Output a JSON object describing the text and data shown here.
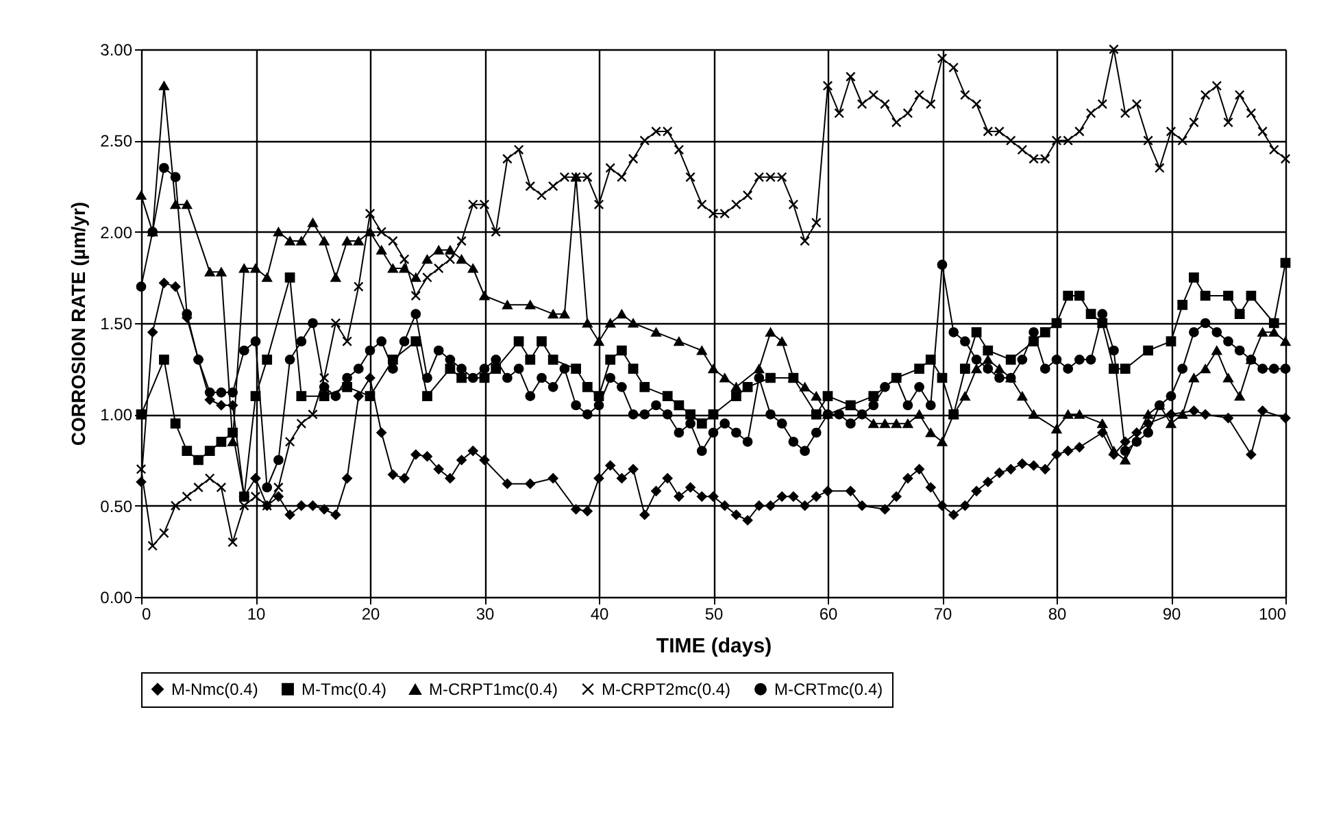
{
  "chart_data": {
    "type": "line",
    "xlabel": "TIME (days)",
    "ylabel": "CORROSION RATE (µm/yr)",
    "xlim": [
      0,
      100
    ],
    "xticks": [
      0,
      10,
      20,
      30,
      40,
      50,
      60,
      70,
      80,
      90,
      100
    ],
    "ylim": [
      0,
      3
    ],
    "yticks": [
      {
        "value": 0,
        "label": "0.00"
      },
      {
        "value": 0.5,
        "label": "0.50"
      },
      {
        "value": 1,
        "label": "1.00"
      },
      {
        "value": 1.5,
        "label": "1.50"
      },
      {
        "value": 2,
        "label": "2.00"
      },
      {
        "value": 2.5,
        "label": "2.50"
      },
      {
        "value": 3,
        "label": "3.00"
      }
    ],
    "grid": true,
    "legend": "bottom",
    "line_style": "solid",
    "series": [
      {
        "name": "M-Nmc(0.4)",
        "color": "#000000",
        "marker": "diamond",
        "x": [
          0,
          1,
          2,
          3,
          4,
          5,
          6,
          7,
          8,
          9,
          10,
          11,
          12,
          13,
          14,
          15,
          16,
          17,
          18,
          19,
          20,
          21,
          22,
          23,
          24,
          25,
          26,
          27,
          28,
          29,
          30,
          32,
          34,
          36,
          38,
          39,
          40,
          41,
          42,
          43,
          44,
          45,
          46,
          47,
          48,
          49,
          50,
          51,
          52,
          53,
          54,
          55,
          56,
          57,
          58,
          59,
          60,
          62,
          63,
          65,
          66,
          67,
          68,
          69,
          70,
          71,
          72,
          73,
          74,
          75,
          76,
          77,
          78,
          79,
          80,
          81,
          82,
          84,
          85,
          86,
          87,
          88,
          90,
          92,
          93,
          95,
          97,
          98,
          100
        ],
        "values": [
          0.63,
          1.45,
          1.72,
          1.7,
          1.53,
          1.3,
          1.08,
          1.05,
          1.05,
          0.55,
          0.65,
          0.5,
          0.55,
          0.45,
          0.5,
          0.5,
          0.48,
          0.45,
          0.65,
          1.1,
          1.2,
          0.9,
          0.67,
          0.65,
          0.78,
          0.77,
          0.7,
          0.65,
          0.75,
          0.8,
          0.75,
          0.62,
          0.62,
          0.65,
          0.48,
          0.47,
          0.65,
          0.72,
          0.65,
          0.7,
          0.45,
          0.58,
          0.65,
          0.55,
          0.6,
          0.55,
          0.55,
          0.5,
          0.45,
          0.42,
          0.5,
          0.5,
          0.55,
          0.55,
          0.5,
          0.55,
          0.58,
          0.58,
          0.5,
          0.48,
          0.55,
          0.65,
          0.7,
          0.6,
          0.5,
          0.45,
          0.5,
          0.58,
          0.63,
          0.68,
          0.7,
          0.73,
          0.72,
          0.7,
          0.78,
          0.8,
          0.82,
          0.9,
          0.78,
          0.85,
          0.9,
          0.95,
          1.0,
          1.02,
          1.0,
          0.98,
          0.78,
          1.02,
          0.98
        ]
      },
      {
        "name": "M-Tmc(0.4)",
        "color": "#000000",
        "marker": "square",
        "x": [
          0,
          2,
          3,
          4,
          5,
          6,
          7,
          8,
          9,
          10,
          11,
          13,
          14,
          16,
          18,
          20,
          22,
          24,
          25,
          27,
          28,
          30,
          31,
          33,
          34,
          35,
          36,
          38,
          39,
          40,
          41,
          42,
          43,
          44,
          46,
          47,
          48,
          49,
          50,
          52,
          53,
          55,
          57,
          59,
          60,
          62,
          64,
          66,
          68,
          69,
          70,
          71,
          72,
          73,
          74,
          76,
          78,
          79,
          80,
          81,
          82,
          83,
          84,
          85,
          86,
          88,
          90,
          91,
          92,
          93,
          95,
          96,
          97,
          99,
          100
        ],
        "values": [
          1.0,
          1.3,
          0.95,
          0.8,
          0.75,
          0.8,
          0.85,
          0.9,
          0.55,
          1.1,
          1.3,
          1.75,
          1.1,
          1.1,
          1.15,
          1.1,
          1.3,
          1.4,
          1.1,
          1.25,
          1.2,
          1.2,
          1.25,
          1.4,
          1.3,
          1.4,
          1.3,
          1.25,
          1.15,
          1.1,
          1.3,
          1.35,
          1.25,
          1.15,
          1.1,
          1.05,
          1.0,
          0.95,
          1.0,
          1.1,
          1.15,
          1.2,
          1.2,
          1.0,
          1.1,
          1.05,
          1.1,
          1.2,
          1.25,
          1.3,
          1.2,
          1.0,
          1.25,
          1.45,
          1.35,
          1.3,
          1.4,
          1.45,
          1.5,
          1.65,
          1.65,
          1.55,
          1.5,
          1.25,
          1.25,
          1.35,
          1.4,
          1.6,
          1.75,
          1.65,
          1.65,
          1.55,
          1.65,
          1.5,
          1.83
        ]
      },
      {
        "name": "M-CRPT1mc(0.4)",
        "color": "#000000",
        "marker": "triangle",
        "x": [
          0,
          1,
          2,
          3,
          4,
          6,
          7,
          8,
          9,
          10,
          11,
          12,
          13,
          14,
          15,
          16,
          17,
          18,
          19,
          20,
          21,
          22,
          23,
          24,
          25,
          26,
          27,
          28,
          29,
          30,
          32,
          34,
          36,
          37,
          38,
          39,
          40,
          41,
          42,
          43,
          45,
          47,
          49,
          50,
          51,
          52,
          54,
          55,
          56,
          57,
          58,
          59,
          60,
          62,
          64,
          65,
          66,
          67,
          68,
          69,
          70,
          71,
          72,
          73,
          74,
          75,
          76,
          77,
          78,
          80,
          81,
          82,
          84,
          85,
          86,
          88,
          89,
          90,
          91,
          92,
          93,
          94,
          95,
          96,
          97,
          98,
          99,
          100
        ],
        "values": [
          2.2,
          2.0,
          2.8,
          2.15,
          2.15,
          1.78,
          1.78,
          0.85,
          1.8,
          1.8,
          1.75,
          2.0,
          1.95,
          1.95,
          2.05,
          1.95,
          1.75,
          1.95,
          1.95,
          2.0,
          1.9,
          1.8,
          1.8,
          1.75,
          1.85,
          1.9,
          1.9,
          1.85,
          1.8,
          1.65,
          1.6,
          1.6,
          1.55,
          1.55,
          2.3,
          1.5,
          1.4,
          1.5,
          1.55,
          1.5,
          1.45,
          1.4,
          1.35,
          1.25,
          1.2,
          1.15,
          1.25,
          1.45,
          1.4,
          1.2,
          1.15,
          1.1,
          1.0,
          1.05,
          0.95,
          0.95,
          0.95,
          0.95,
          1.0,
          0.9,
          0.85,
          1.0,
          1.1,
          1.25,
          1.3,
          1.25,
          1.2,
          1.1,
          1.0,
          0.92,
          1.0,
          1.0,
          0.95,
          0.8,
          0.75,
          1.0,
          1.05,
          0.95,
          1.0,
          1.2,
          1.25,
          1.35,
          1.2,
          1.1,
          1.3,
          1.45,
          1.45,
          1.4
        ]
      },
      {
        "name": "M-CRPT2mc(0.4)",
        "color": "#000000",
        "marker": "cross",
        "x": [
          0,
          1,
          2,
          3,
          4,
          5,
          6,
          7,
          8,
          9,
          10,
          11,
          12,
          13,
          14,
          15,
          16,
          17,
          18,
          19,
          20,
          21,
          22,
          23,
          24,
          25,
          26,
          27,
          28,
          29,
          30,
          31,
          32,
          33,
          34,
          35,
          36,
          37,
          38,
          39,
          40,
          41,
          42,
          43,
          44,
          45,
          46,
          47,
          48,
          49,
          50,
          51,
          52,
          53,
          54,
          55,
          56,
          57,
          58,
          59,
          60,
          61,
          62,
          63,
          64,
          65,
          66,
          67,
          68,
          69,
          70,
          71,
          72,
          73,
          74,
          75,
          76,
          77,
          78,
          79,
          80,
          81,
          82,
          83,
          84,
          85,
          86,
          87,
          88,
          89,
          90,
          91,
          92,
          93,
          94,
          95,
          96,
          97,
          98,
          99,
          100
        ],
        "values": [
          0.7,
          0.28,
          0.35,
          0.5,
          0.55,
          0.6,
          0.65,
          0.6,
          0.3,
          0.5,
          0.55,
          0.5,
          0.6,
          0.85,
          0.95,
          1.0,
          1.2,
          1.5,
          1.4,
          1.7,
          2.1,
          2.0,
          1.95,
          1.85,
          1.65,
          1.75,
          1.8,
          1.85,
          1.95,
          2.15,
          2.15,
          2.0,
          2.4,
          2.45,
          2.25,
          2.2,
          2.25,
          2.3,
          2.3,
          2.3,
          2.15,
          2.35,
          2.3,
          2.4,
          2.5,
          2.55,
          2.55,
          2.45,
          2.3,
          2.15,
          2.1,
          2.1,
          2.15,
          2.2,
          2.3,
          2.3,
          2.3,
          2.15,
          1.95,
          2.05,
          2.8,
          2.65,
          2.85,
          2.7,
          2.75,
          2.7,
          2.6,
          2.65,
          2.75,
          2.7,
          2.95,
          2.9,
          2.75,
          2.7,
          2.55,
          2.55,
          2.5,
          2.45,
          2.4,
          2.4,
          2.5,
          2.5,
          2.55,
          2.65,
          2.7,
          3.0,
          2.65,
          2.7,
          2.5,
          2.35,
          2.55,
          2.5,
          2.6,
          2.75,
          2.8,
          2.6,
          2.75,
          2.65,
          2.55,
          2.45,
          2.4
        ]
      },
      {
        "name": "M-CRTmc(0.4)",
        "color": "#000000",
        "marker": "circle",
        "x": [
          0,
          1,
          2,
          3,
          4,
          5,
          6,
          7,
          8,
          9,
          10,
          11,
          12,
          13,
          14,
          15,
          16,
          17,
          18,
          19,
          20,
          21,
          22,
          23,
          24,
          25,
          26,
          27,
          28,
          29,
          30,
          31,
          32,
          33,
          34,
          35,
          36,
          37,
          38,
          39,
          40,
          41,
          42,
          43,
          44,
          45,
          46,
          47,
          48,
          49,
          50,
          51,
          52,
          53,
          54,
          55,
          56,
          57,
          58,
          59,
          60,
          61,
          62,
          63,
          64,
          65,
          66,
          67,
          68,
          69,
          70,
          71,
          72,
          73,
          74,
          75,
          76,
          77,
          78,
          79,
          80,
          81,
          82,
          83,
          84,
          85,
          86,
          87,
          88,
          89,
          90,
          91,
          92,
          93,
          94,
          95,
          96,
          97,
          98,
          99,
          100
        ],
        "values": [
          1.7,
          2.0,
          2.35,
          2.3,
          1.55,
          1.3,
          1.12,
          1.12,
          1.12,
          1.35,
          1.4,
          0.6,
          0.75,
          1.3,
          1.4,
          1.5,
          1.15,
          1.1,
          1.2,
          1.25,
          1.35,
          1.4,
          1.25,
          1.4,
          1.55,
          1.2,
          1.35,
          1.3,
          1.25,
          1.2,
          1.25,
          1.3,
          1.2,
          1.25,
          1.1,
          1.2,
          1.15,
          1.25,
          1.05,
          1.0,
          1.05,
          1.2,
          1.15,
          1.0,
          1.0,
          1.05,
          1.0,
          0.9,
          0.95,
          0.8,
          0.9,
          0.95,
          0.9,
          0.85,
          1.2,
          1.0,
          0.95,
          0.85,
          0.8,
          0.9,
          1.0,
          1.0,
          0.95,
          1.0,
          1.05,
          1.15,
          1.2,
          1.05,
          1.15,
          1.05,
          1.82,
          1.45,
          1.4,
          1.3,
          1.25,
          1.2,
          1.2,
          1.3,
          1.45,
          1.25,
          1.3,
          1.25,
          1.3,
          1.3,
          1.55,
          1.35,
          0.8,
          0.85,
          0.9,
          1.05,
          1.1,
          1.25,
          1.45,
          1.5,
          1.45,
          1.4,
          1.35,
          1.3,
          1.25,
          1.25,
          1.25
        ]
      }
    ]
  }
}
